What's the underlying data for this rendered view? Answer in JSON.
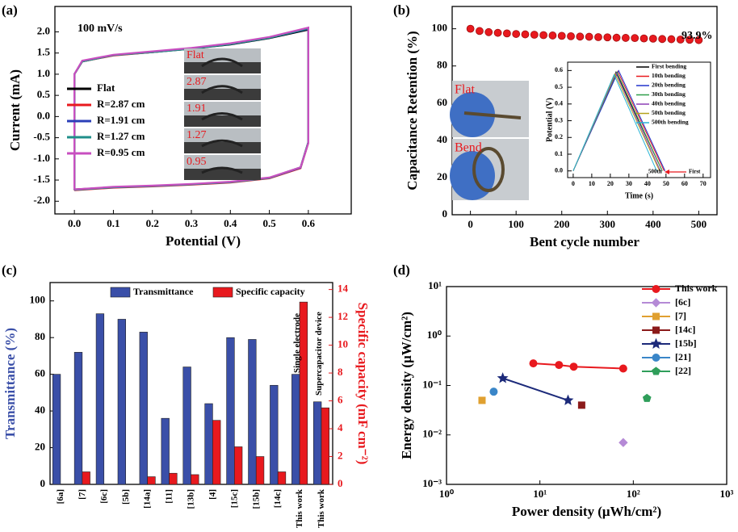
{
  "chart_data": [
    {
      "type": "line",
      "panel_label": "(a)",
      "xlabel": "Potential (V)",
      "ylabel": "Current (mA)",
      "annotation": "100 mV/s",
      "image_labels": [
        "Flat",
        "2.87",
        "1.91",
        "1.27",
        "0.95"
      ],
      "legend": "lower left",
      "xlim": [
        -0.05,
        0.71
      ],
      "xticks": [
        {
          "value": 0,
          "label": "0.0"
        },
        0.1,
        0.2,
        0.3,
        0.4,
        0.5,
        0.6
      ],
      "ylim": [
        -2.3,
        2.6
      ],
      "yticks": [
        {
          "value": -2,
          "label": "-2.0"
        },
        -1.5,
        {
          "value": -1,
          "label": "-1.0"
        },
        -0.5,
        {
          "value": 0,
          "label": "0.0"
        },
        0.5,
        {
          "value": 1,
          "label": "1.0"
        },
        1.5,
        {
          "value": 2,
          "label": "2.0"
        }
      ],
      "x": [
        0,
        0,
        0.02,
        0.1,
        0.2,
        0.3,
        0.4,
        0.5,
        0.6,
        0.6,
        0.58,
        0.5,
        0.4,
        0.3,
        0.2,
        0.1,
        0
      ],
      "series": [
        {
          "name": "Flat",
          "color": "#000000",
          "values": [
            -1.72,
            1.0,
            1.3,
            1.45,
            1.52,
            1.6,
            1.7,
            1.85,
            2.05,
            -0.6,
            -1.2,
            -1.45,
            -1.55,
            -1.6,
            -1.64,
            -1.67,
            -1.72
          ]
        },
        {
          "name": "R=2.87 cm",
          "color": "#e8191e",
          "values": [
            -1.74,
            1.0,
            1.3,
            1.44,
            1.52,
            1.61,
            1.72,
            1.87,
            2.08,
            -0.62,
            -1.22,
            -1.46,
            -1.56,
            -1.61,
            -1.65,
            -1.68,
            -1.74
          ]
        },
        {
          "name": "R=1.91 cm",
          "color": "#2b3fb8",
          "values": [
            -1.73,
            1.0,
            1.31,
            1.45,
            1.53,
            1.61,
            1.71,
            1.86,
            2.07,
            -0.61,
            -1.21,
            -1.45,
            -1.55,
            -1.6,
            -1.64,
            -1.67,
            -1.73
          ]
        },
        {
          "name": "R=1.27 cm",
          "color": "#1f8f8a",
          "values": [
            -1.73,
            1.0,
            1.3,
            1.45,
            1.52,
            1.6,
            1.71,
            1.86,
            2.08,
            -0.6,
            -1.2,
            -1.45,
            -1.55,
            -1.6,
            -1.64,
            -1.67,
            -1.73
          ]
        },
        {
          "name": "R=0.95 cm",
          "color": "#c84fc0",
          "values": [
            -1.72,
            1.0,
            1.32,
            1.46,
            1.54,
            1.62,
            1.73,
            1.88,
            2.1,
            -0.62,
            -1.2,
            -1.44,
            -1.54,
            -1.59,
            -1.63,
            -1.66,
            -1.72
          ]
        }
      ]
    },
    {
      "type": "scatter",
      "panel_label": "(b)",
      "xlabel": "Bent cycle number",
      "ylabel": "Capacitance Retention (%)",
      "annotation": "93.9%",
      "image_labels": [
        "Flat",
        "Bend"
      ],
      "color": "#e8191e",
      "xlim": [
        -40,
        540
      ],
      "xticks": [
        0,
        100,
        200,
        300,
        400,
        500
      ],
      "ylim": [
        0,
        112
      ],
      "yticks": [
        0,
        20,
        40,
        60,
        80,
        100
      ],
      "x": [
        0,
        20,
        40,
        60,
        80,
        100,
        120,
        140,
        160,
        180,
        200,
        220,
        240,
        260,
        280,
        300,
        320,
        340,
        360,
        380,
        400,
        420,
        440,
        460,
        480,
        500
      ],
      "values": [
        100,
        98.8,
        98.2,
        97.8,
        97.5,
        97.2,
        97.0,
        96.8,
        96.6,
        96.4,
        96.2,
        96.0,
        95.8,
        95.7,
        95.5,
        95.4,
        95.2,
        95.1,
        95.0,
        94.8,
        94.7,
        94.5,
        94.4,
        94.2,
        94.1,
        93.9
      ]
    },
    {
      "type": "line",
      "xlabel": "Time (s)",
      "ylabel": "Potential (V)",
      "annotations": [
        "500th",
        "First"
      ],
      "legend": "upper right",
      "xlim": [
        -3,
        74
      ],
      "xticks": [
        0,
        10,
        20,
        30,
        40,
        50,
        60,
        70
      ],
      "ylim": [
        -0.04,
        0.65
      ],
      "yticks": [
        {
          "value": 0,
          "label": "0.0"
        },
        0.1,
        0.2,
        0.3,
        0.4,
        0.5,
        0.6
      ],
      "series": [
        {
          "name": "First bending",
          "color": "#000000",
          "x": [
            0,
            23,
            48
          ],
          "values": [
            0,
            0.59,
            0
          ]
        },
        {
          "name": "10th bending",
          "color": "#e8191e",
          "x": [
            0,
            24,
            49
          ],
          "values": [
            0,
            0.595,
            0
          ]
        },
        {
          "name": "20th bending",
          "color": "#2233cc",
          "x": [
            0,
            24.5,
            49.5
          ],
          "values": [
            0,
            0.6,
            0
          ]
        },
        {
          "name": "30th bending",
          "color": "#2e9e4a",
          "x": [
            0,
            23.5,
            48
          ],
          "values": [
            0,
            0.59,
            0
          ]
        },
        {
          "name": "40th bending",
          "color": "#8c3fb5",
          "x": [
            0,
            23,
            47
          ],
          "values": [
            0,
            0.585,
            0
          ]
        },
        {
          "name": "50th bending",
          "color": "#b5a21e",
          "x": [
            0,
            22.5,
            46.5
          ],
          "values": [
            0,
            0.58,
            0
          ]
        },
        {
          "name": "500th bending",
          "color": "#27b3d4",
          "x": [
            0,
            22,
            45
          ],
          "values": [
            0,
            0.575,
            0
          ]
        }
      ]
    },
    {
      "type": "bar",
      "panel_label": "(c)",
      "ylabel": "Transmittance (%)",
      "y2label": "Specific capacity (mF cm⁻²)",
      "annotations": [
        "Single electrode",
        "Supercapacitor device"
      ],
      "legend": "upper center",
      "categories": [
        "[6a]",
        "[7]",
        "[6c]",
        "[5b]",
        "[14a]",
        "[11]",
        "[13b]",
        "[4]",
        "[15c]",
        "[15b]",
        "[14c]",
        "This work",
        "This work"
      ],
      "ylim": [
        0,
        110
      ],
      "yticks": [
        0,
        20,
        40,
        60,
        80,
        100
      ],
      "y2lim": [
        0,
        14.5
      ],
      "y2ticks": [
        0,
        2,
        4,
        6,
        8,
        10,
        12,
        14
      ],
      "series": [
        {
          "name": "Transmittance",
          "color": "#3a4fa8",
          "values": [
            60,
            72,
            93,
            90,
            83,
            36,
            64,
            44,
            80,
            79,
            54,
            60,
            45
          ]
        },
        {
          "name": "Specific capacity",
          "color": "#e8191e",
          "axis": "y2",
          "values": [
            null,
            0.9,
            null,
            null,
            0.55,
            0.8,
            0.7,
            4.6,
            2.7,
            2.0,
            0.9,
            13.1,
            5.5
          ]
        }
      ]
    },
    {
      "type": "scatter",
      "panel_label": "(d)",
      "xlabel": "Power density (μWh/cm²)",
      "ylabel": "Energy density (μW/cm²)",
      "legend": "upper right",
      "log_x": true,
      "log_y": true,
      "xlim": [
        1,
        1000
      ],
      "xticks": [
        {
          "value": 1,
          "label": "10⁰"
        },
        {
          "value": 10,
          "label": "10¹"
        },
        {
          "value": 100,
          "label": "10²"
        },
        {
          "value": 1000,
          "label": "10³"
        }
      ],
      "ylim": [
        0.001,
        10
      ],
      "yticks": [
        {
          "value": 0.001,
          "label": "10⁻³"
        },
        {
          "value": 0.01,
          "label": "10⁻²"
        },
        {
          "value": 0.1,
          "label": "10⁻¹"
        },
        {
          "value": 1,
          "label": "10⁰"
        },
        {
          "value": 10,
          "label": "10¹"
        }
      ],
      "series": [
        {
          "name": "This work",
          "color": "#e8191e",
          "marker": "circle",
          "x": [
            8.5,
            16,
            23,
            78
          ],
          "values": [
            0.28,
            0.26,
            0.24,
            0.22
          ]
        },
        {
          "name": "[6c]",
          "color": "#b58ad6",
          "marker": "diamond",
          "x": [
            78
          ],
          "values": [
            0.007
          ]
        },
        {
          "name": "[7]",
          "color": "#e0a030",
          "marker": "square",
          "x": [
            2.4
          ],
          "values": [
            0.05
          ]
        },
        {
          "name": "[14c]",
          "color": "#8b1a1a",
          "marker": "square",
          "x": [
            28
          ],
          "values": [
            0.04
          ]
        },
        {
          "name": "[15b]",
          "color": "#1c2a7a",
          "marker": "star",
          "x": [
            4,
            20
          ],
          "values": [
            0.14,
            0.05
          ]
        },
        {
          "name": "[21]",
          "color": "#3a86c8",
          "marker": "circle",
          "x": [
            3.2
          ],
          "values": [
            0.075
          ]
        },
        {
          "name": "[22]",
          "color": "#2f9e5a",
          "marker": "pentagon",
          "x": [
            140
          ],
          "values": [
            0.055
          ]
        }
      ]
    }
  ]
}
